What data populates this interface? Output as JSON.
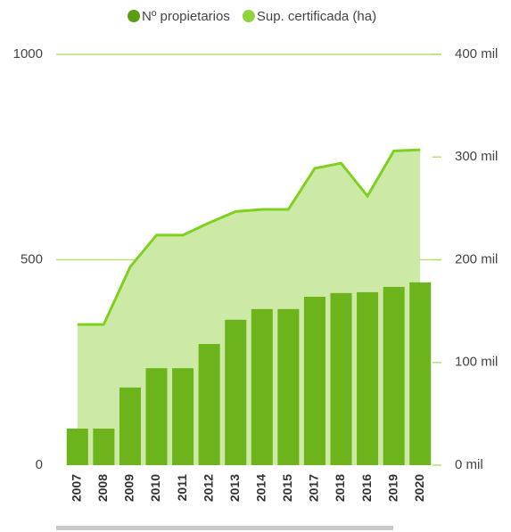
{
  "chart_data": {
    "type": "bar",
    "legend_position": "top",
    "categories": [
      "2007",
      "2008",
      "2009",
      "2010",
      "2011",
      "2012",
      "2013",
      "2014",
      "2015",
      "2017",
      "2018",
      "2016",
      "2019",
      "2020"
    ],
    "series": [
      {
        "name": "Nº propietarios",
        "color": "#6cb31c",
        "type": "bar",
        "axis": "y",
        "values": [
          89,
          89,
          189,
          236,
          236,
          295,
          354,
          380,
          380,
          410,
          419,
          421,
          434,
          445
        ]
      },
      {
        "name": "Sup. certificada (ha)",
        "color": "#7fd11f",
        "type": "area",
        "axis": "y2",
        "values": [
          137000,
          137000,
          193000,
          224000,
          224000,
          236000,
          247000,
          249000,
          249000,
          289000,
          294000,
          262000,
          306000,
          307000
        ]
      }
    ],
    "ylim": [
      0,
      1000
    ],
    "yticks": [
      0,
      500,
      1000
    ],
    "y2lim": [
      0,
      400000
    ],
    "y2ticks": [
      {
        "value": 0,
        "label": "0 mil"
      },
      {
        "value": 100000,
        "label": "100 mil"
      },
      {
        "value": 200000,
        "label": "200 mil"
      },
      {
        "value": 300000,
        "label": "300 mil"
      },
      {
        "value": 400000,
        "label": "400 mil"
      }
    ],
    "grid": true
  }
}
